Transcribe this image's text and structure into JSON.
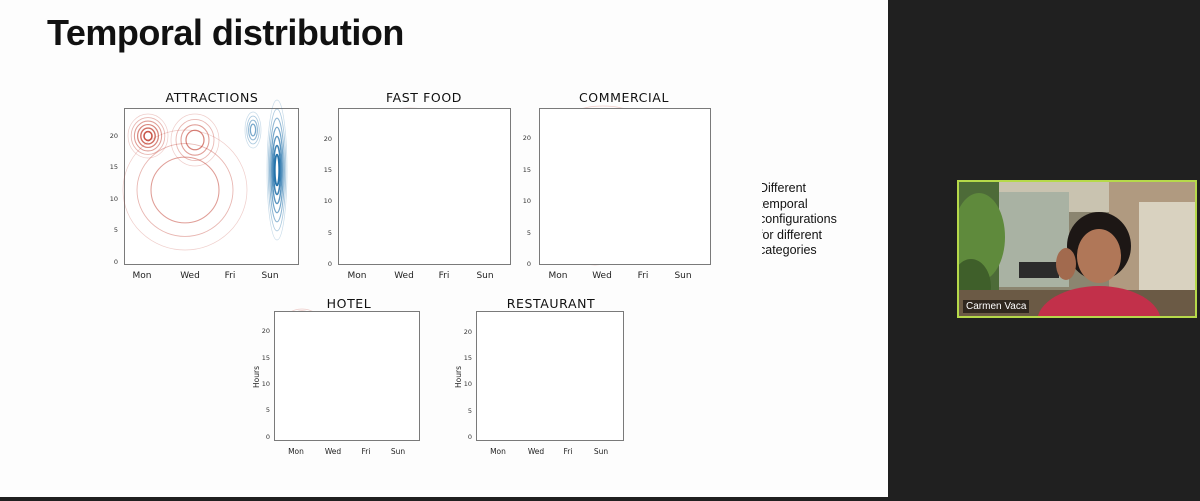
{
  "slide": {
    "title": "Temporal distribution",
    "side_note": [
      "Different",
      "temporal",
      "configurations",
      "for different",
      "categories"
    ]
  },
  "charts": [
    {
      "id": "attractions",
      "title": "ATTRACTIONS",
      "x_ticks": [
        "Mon",
        "Wed",
        "Fri",
        "Sun"
      ],
      "y_ticks": [
        "0",
        "5",
        "10",
        "15",
        "20"
      ],
      "ylabel": ""
    },
    {
      "id": "fast-food",
      "title": "FAST  FOOD",
      "x_ticks": [
        "Mon",
        "Wed",
        "Fri",
        "Sun"
      ],
      "y_ticks": [
        "0",
        "5",
        "10",
        "15",
        "20"
      ],
      "ylabel": ""
    },
    {
      "id": "commercial",
      "title": "COMMERCIAL",
      "x_ticks": [
        "Mon",
        "Wed",
        "Fri",
        "Sun"
      ],
      "y_ticks": [
        "0",
        "5",
        "10",
        "15",
        "20"
      ],
      "ylabel": ""
    },
    {
      "id": "hotel",
      "title": "HOTEL",
      "x_ticks": [
        "Mon",
        "Wed",
        "Fri",
        "Sun"
      ],
      "y_ticks": [
        "0",
        "5",
        "10",
        "15",
        "20"
      ],
      "ylabel": "Hours"
    },
    {
      "id": "restaurant",
      "title": "RESTAURANT",
      "x_ticks": [
        "Mon",
        "Wed",
        "Fri",
        "Sun"
      ],
      "y_ticks": [
        "0",
        "5",
        "10",
        "15",
        "20"
      ],
      "ylabel": "Hours"
    }
  ],
  "video": {
    "participant_name": "Carmen Vaca"
  },
  "colors": {
    "weekday_contour": "#c0392b",
    "weekend_contour": "#1f6fa8",
    "tile_border": "#b6d94a",
    "background": "#202020"
  }
}
